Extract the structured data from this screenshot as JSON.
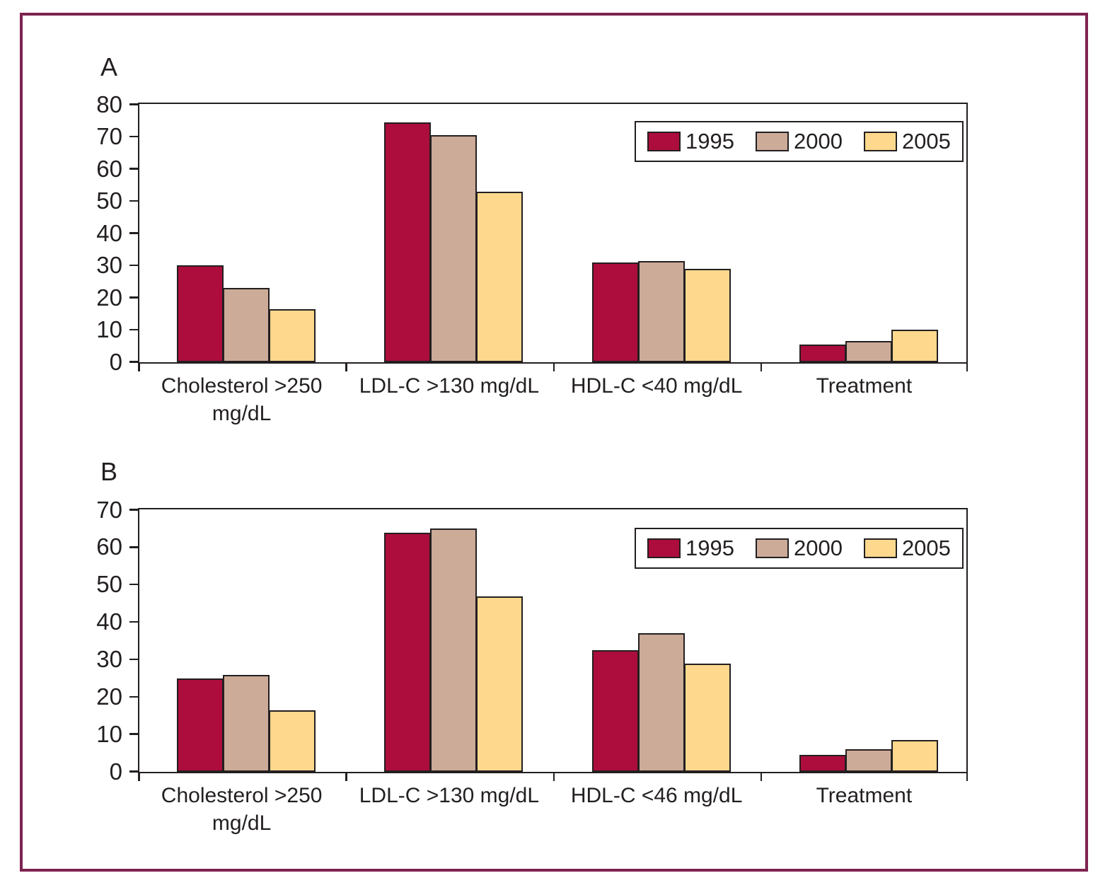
{
  "frame_color": "#7e2350",
  "axis_color": "#231f20",
  "series_colors": {
    "1995": "#ad0d3c",
    "2000": "#ccab98",
    "2005": "#fdd88d"
  },
  "chart_data": [
    {
      "type": "bar",
      "panel_label": "A",
      "title": "",
      "xlabel": "",
      "ylabel": "",
      "ylim": [
        0,
        80
      ],
      "yticks": [
        80,
        70,
        60,
        50,
        40,
        30,
        20,
        10,
        0
      ],
      "grid": false,
      "legend_position": "top-right",
      "legend": [
        "1995",
        "2000",
        "2005"
      ],
      "categories": [
        "Cholesterol >250\nmg/dL",
        "LDL-C >130 mg/dL",
        "HDL-C <40 mg/dL",
        "Treatment"
      ],
      "series": [
        {
          "name": "1995",
          "color": "#ad0d3c",
          "values": [
            30,
            74.5,
            31,
            5.5
          ]
        },
        {
          "name": "2000",
          "color": "#ccab98",
          "values": [
            23,
            70.5,
            31.5,
            6.5
          ]
        },
        {
          "name": "2005",
          "color": "#fdd88d",
          "values": [
            16.5,
            53,
            29,
            10
          ]
        }
      ]
    },
    {
      "type": "bar",
      "panel_label": "B",
      "title": "",
      "xlabel": "",
      "ylabel": "",
      "ylim": [
        0,
        70
      ],
      "yticks": [
        70,
        60,
        50,
        40,
        30,
        20,
        10,
        0
      ],
      "grid": false,
      "legend_position": "top-right",
      "legend": [
        "1995",
        "2000",
        "2005"
      ],
      "categories": [
        "Cholesterol >250\nmg/dL",
        "LDL-C >130 mg/dL",
        "HDL-C <46 mg/dL",
        "Treatment"
      ],
      "series": [
        {
          "name": "1995",
          "color": "#ad0d3c",
          "values": [
            25,
            64,
            32.5,
            4.5
          ]
        },
        {
          "name": "2000",
          "color": "#ccab98",
          "values": [
            26,
            65,
            37,
            6
          ]
        },
        {
          "name": "2005",
          "color": "#fdd88d",
          "values": [
            16.5,
            47,
            29,
            8.5
          ]
        }
      ]
    }
  ]
}
